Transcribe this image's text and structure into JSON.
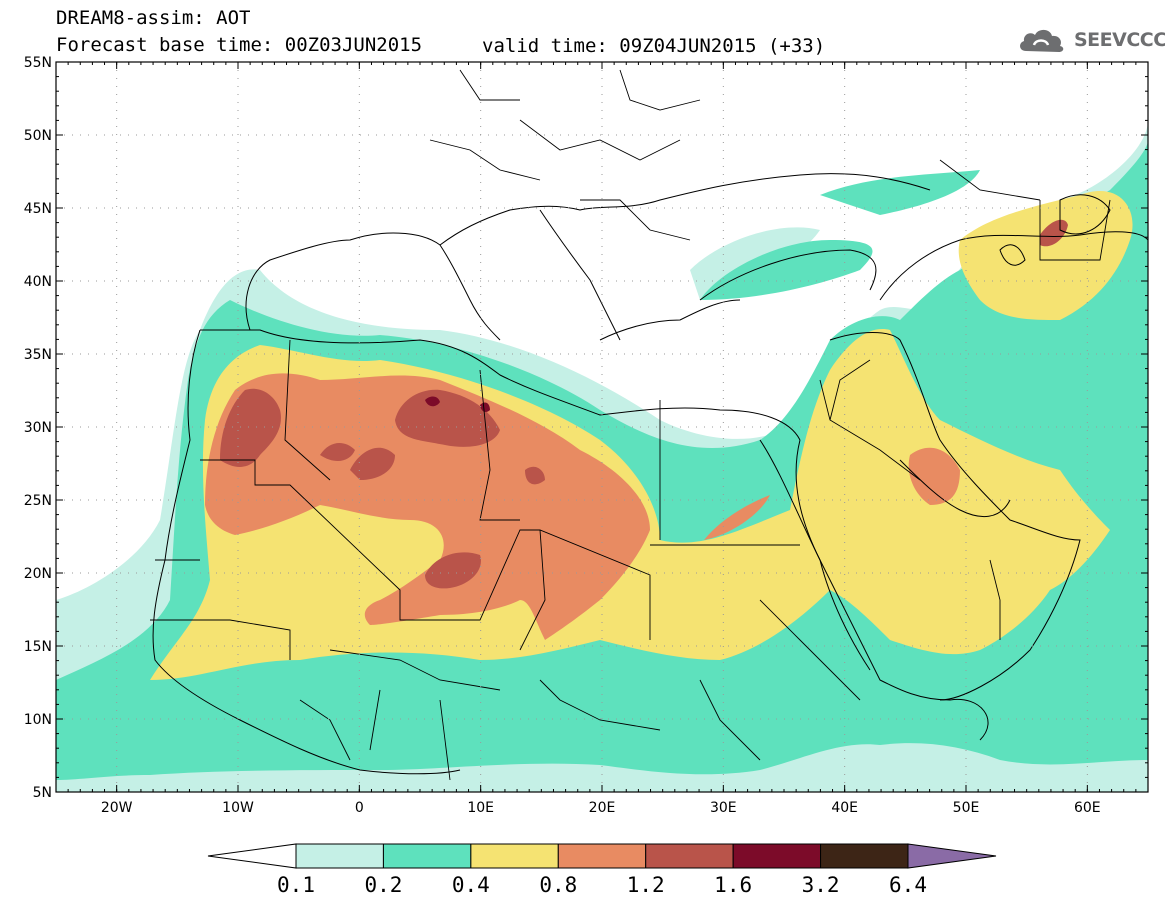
{
  "header": {
    "line1": "DREAM8-assim: AOT",
    "line2": "Forecast base time: 00Z03JUN2015",
    "line2b": "valid time: 09Z04JUN2015 (+33)"
  },
  "logo": {
    "text": "SEEVCCC",
    "icon": "cloud-icon",
    "color": "#6d6e70"
  },
  "map": {
    "lon_range": [
      -25,
      65
    ],
    "lat_range": [
      5,
      55
    ],
    "y_ticks": [
      "55N",
      "50N",
      "45N",
      "40N",
      "35N",
      "30N",
      "25N",
      "20N",
      "15N",
      "10N",
      "5N"
    ],
    "x_ticks": [
      "20W",
      "10W",
      "0",
      "10E",
      "20E",
      "30E",
      "40E",
      "50E",
      "60E"
    ],
    "grid": "dotted",
    "coastlines": true,
    "country_borders": true
  },
  "colorbar": {
    "labels": [
      "0.1",
      "0.2",
      "0.4",
      "0.8",
      "1.2",
      "1.6",
      "3.2",
      "6.4"
    ],
    "colors": [
      "#ffffff",
      "#c5f0e6",
      "#5ee1bd",
      "#f5e372",
      "#e88b62",
      "#b9544a",
      "#7c0b29",
      "#3d2516",
      "#8a6ba6"
    ]
  }
}
